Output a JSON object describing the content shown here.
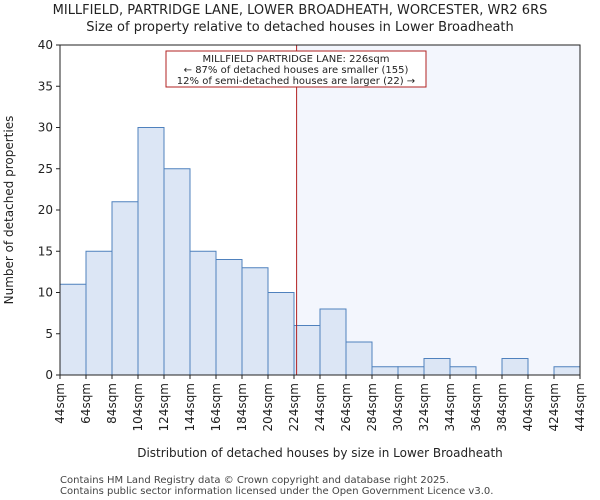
{
  "chart_data": {
    "type": "bar",
    "title": "MILLFIELD, PARTRIDGE LANE, LOWER BROADHEATH, WORCESTER, WR2 6RS",
    "subtitle": "Size of property relative to detached houses in Lower Broadheath",
    "xlabel": "Distribution of detached houses by size in Lower Broadheath",
    "ylabel": "Number of detached properties",
    "bin_edges": [
      44,
      64,
      84,
      104,
      124,
      144,
      164,
      184,
      204,
      224,
      244,
      264,
      284,
      304,
      324,
      344,
      364,
      384,
      404,
      424,
      444
    ],
    "tick_labels": [
      "44sqm",
      "64sqm",
      "84sqm",
      "104sqm",
      "124sqm",
      "144sqm",
      "164sqm",
      "184sqm",
      "204sqm",
      "224sqm",
      "244sqm",
      "264sqm",
      "284sqm",
      "304sqm",
      "324sqm",
      "344sqm",
      "364sqm",
      "384sqm",
      "404sqm",
      "424sqm",
      "444sqm"
    ],
    "values": [
      11,
      15,
      21,
      30,
      25,
      15,
      14,
      13,
      10,
      6,
      8,
      4,
      1,
      1,
      2,
      1,
      0,
      2,
      0,
      1
    ],
    "ylim": [
      0,
      40
    ],
    "yticks": [
      0,
      5,
      10,
      15,
      20,
      25,
      30,
      35,
      40
    ],
    "xlim": [
      44,
      444
    ],
    "marker_value": 226,
    "colors": {
      "bar_fill": "#dce6f5",
      "bar_edge": "#4f81bd",
      "highlight_bg": "#f3f6fd",
      "marker": "#b22222",
      "text": "#222222"
    },
    "annotation": {
      "line1": "MILLFIELD PARTRIDGE LANE: 226sqm",
      "line2": "← 87% of detached houses are smaller (155)",
      "line3": "12% of semi-detached houses are larger (22) →"
    }
  },
  "footer": {
    "line1": "Contains HM Land Registry data © Crown copyright and database right 2025.",
    "line2": "Contains public sector information licensed under the Open Government Licence v3.0."
  }
}
